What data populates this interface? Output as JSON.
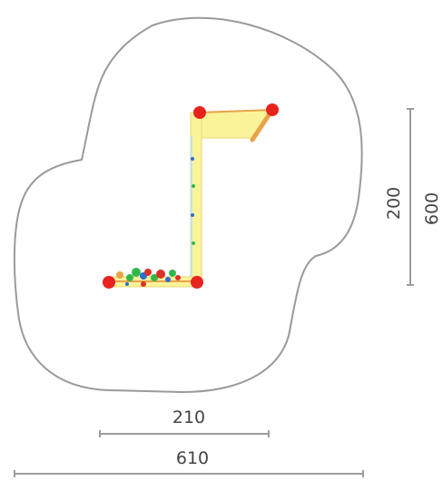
{
  "dimensions": {
    "width_large": "610",
    "width_small": "210",
    "height_small": "200",
    "height_large": "600"
  },
  "colors": {
    "boundary": "#9a9a9a",
    "dimension_line": "#9c9c9c",
    "post": "#e8231d",
    "panel": "#fbf39a",
    "beam": "#e9a34a",
    "accent_green": "#32b84a",
    "accent_blue": "#2b6fd1",
    "accent_red": "#d9322a"
  },
  "icons": [
    "post-marker",
    "climbing-holds",
    "net-panel"
  ]
}
